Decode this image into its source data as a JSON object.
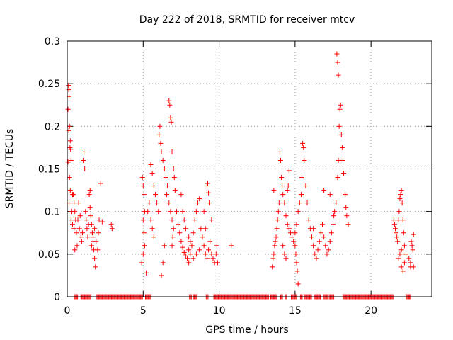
{
  "chart_data": {
    "type": "scatter",
    "title": "Day 222 of 2018, SRMTID for receiver mtcv",
    "xlabel": "GPS time / hours",
    "ylabel": "SRMTID / TECUs",
    "xlim": [
      0,
      24
    ],
    "ylim": [
      0,
      0.3
    ],
    "xticks": [
      0,
      5,
      10,
      15,
      20
    ],
    "yticks": [
      0,
      0.05,
      0.1,
      0.15,
      0.2,
      0.25,
      0.3
    ],
    "xtick_labels": [
      "0",
      "5",
      "10",
      "15",
      "20"
    ],
    "ytick_labels": [
      "0",
      "0.05",
      "0.1",
      "0.15",
      "0.2",
      "0.25",
      "0.3"
    ],
    "grid": true,
    "marker": "+",
    "color": "#ff0000",
    "series": [
      {
        "name": "SRMTID",
        "points": [
          [
            0.05,
            0.22
          ],
          [
            0.08,
            0.248
          ],
          [
            0.1,
            0.243
          ],
          [
            0.12,
            0.235
          ],
          [
            0.15,
            0.2
          ],
          [
            0.1,
            0.195
          ],
          [
            0.18,
            0.175
          ],
          [
            0.22,
            0.173
          ],
          [
            0.2,
            0.183
          ],
          [
            0.25,
            0.16
          ],
          [
            0.05,
            0.158
          ],
          [
            0.15,
            0.14
          ],
          [
            0.2,
            0.125
          ],
          [
            0.12,
            0.11
          ],
          [
            0.3,
            0.1
          ],
          [
            0.25,
            0.09
          ],
          [
            0.35,
            0.085
          ],
          [
            0.4,
            0.12
          ],
          [
            0.45,
            0.11
          ],
          [
            0.5,
            0.1
          ],
          [
            0.55,
            0.09
          ],
          [
            0.6,
            0.075
          ],
          [
            0.65,
            0.06
          ],
          [
            0.5,
            0.055
          ],
          [
            0.45,
            0.08
          ],
          [
            0.35,
            0.12
          ],
          [
            0.7,
            0.09
          ],
          [
            0.75,
            0.11
          ],
          [
            0.8,
            0.08
          ],
          [
            0.85,
            0.095
          ],
          [
            0.9,
            0.07
          ],
          [
            0.95,
            0.065
          ],
          [
            1.0,
            0.075
          ],
          [
            1.05,
            0.16
          ],
          [
            1.1,
            0.17
          ],
          [
            1.15,
            0.15
          ],
          [
            1.2,
            0.1
          ],
          [
            1.25,
            0.09
          ],
          [
            1.3,
            0.08
          ],
          [
            1.35,
            0.07
          ],
          [
            1.4,
            0.085
          ],
          [
            1.45,
            0.12
          ],
          [
            1.5,
            0.105
          ],
          [
            1.55,
            0.095
          ],
          [
            1.6,
            0.085
          ],
          [
            1.65,
            0.075
          ],
          [
            1.7,
            0.065
          ],
          [
            1.75,
            0.055
          ],
          [
            1.8,
            0.045
          ],
          [
            1.85,
            0.035
          ],
          [
            1.6,
            0.06
          ],
          [
            1.7,
            0.07
          ],
          [
            1.8,
            0.08
          ],
          [
            1.9,
            0.065
          ],
          [
            2.0,
            0.055
          ],
          [
            2.05,
            0.075
          ],
          [
            2.1,
            0.09
          ],
          [
            1.5,
            0.125
          ],
          [
            2.2,
            0.133
          ],
          [
            2.3,
            0.088
          ],
          [
            2.9,
            0.085
          ],
          [
            2.95,
            0.08
          ],
          [
            4.95,
            0.14
          ],
          [
            5.0,
            0.13
          ],
          [
            5.05,
            0.12
          ],
          [
            5.1,
            0.1
          ],
          [
            5.0,
            0.09
          ],
          [
            5.05,
            0.075
          ],
          [
            5.1,
            0.06
          ],
          [
            5.0,
            0.05
          ],
          [
            4.9,
            0.04
          ],
          [
            5.2,
            0.028
          ],
          [
            5.3,
            0.1
          ],
          [
            5.4,
            0.11
          ],
          [
            5.5,
            0.09
          ],
          [
            5.6,
            0.08
          ],
          [
            5.7,
            0.07
          ],
          [
            5.5,
            0.155
          ],
          [
            5.6,
            0.145
          ],
          [
            5.7,
            0.13
          ],
          [
            5.8,
            0.12
          ],
          [
            5.9,
            0.11
          ],
          [
            6.0,
            0.1
          ],
          [
            6.05,
            0.19
          ],
          [
            6.1,
            0.2
          ],
          [
            6.15,
            0.18
          ],
          [
            6.2,
            0.17
          ],
          [
            6.3,
            0.16
          ],
          [
            6.4,
            0.15
          ],
          [
            6.5,
            0.14
          ],
          [
            6.6,
            0.13
          ],
          [
            6.55,
            0.12
          ],
          [
            6.7,
            0.11
          ],
          [
            6.8,
            0.1
          ],
          [
            6.9,
            0.09
          ],
          [
            7.0,
            0.08
          ],
          [
            6.95,
            0.07
          ],
          [
            6.9,
            0.06
          ],
          [
            6.4,
            0.06
          ],
          [
            6.3,
            0.04
          ],
          [
            6.2,
            0.025
          ],
          [
            6.7,
            0.23
          ],
          [
            6.75,
            0.225
          ],
          [
            6.8,
            0.21
          ],
          [
            6.85,
            0.205
          ],
          [
            6.9,
            0.17
          ],
          [
            7.0,
            0.15
          ],
          [
            7.05,
            0.14
          ],
          [
            7.1,
            0.125
          ],
          [
            7.2,
            0.1
          ],
          [
            7.3,
            0.085
          ],
          [
            7.4,
            0.075
          ],
          [
            7.5,
            0.065
          ],
          [
            7.6,
            0.058
          ],
          [
            7.7,
            0.052
          ],
          [
            7.8,
            0.048
          ],
          [
            7.9,
            0.045
          ],
          [
            8.0,
            0.04
          ],
          [
            7.5,
            0.12
          ],
          [
            7.6,
            0.1
          ],
          [
            7.7,
            0.09
          ],
          [
            7.8,
            0.08
          ],
          [
            8.0,
            0.07
          ],
          [
            8.1,
            0.065
          ],
          [
            8.2,
            0.06
          ],
          [
            8.3,
            0.075
          ],
          [
            8.4,
            0.09
          ],
          [
            8.5,
            0.1
          ],
          [
            8.6,
            0.11
          ],
          [
            8.7,
            0.115
          ],
          [
            8.8,
            0.08
          ],
          [
            8.9,
            0.07
          ],
          [
            9.0,
            0.06
          ],
          [
            9.1,
            0.05
          ],
          [
            9.2,
            0.045
          ],
          [
            9.3,
            0.055
          ],
          [
            9.4,
            0.065
          ],
          [
            9.5,
            0.05
          ],
          [
            9.6,
            0.045
          ],
          [
            9.7,
            0.04
          ],
          [
            9.8,
            0.05
          ],
          [
            9.85,
            0.06
          ],
          [
            9.9,
            0.04
          ],
          [
            9.0,
            0.1
          ],
          [
            9.1,
            0.08
          ],
          [
            9.2,
            0.13
          ],
          [
            9.25,
            0.133
          ],
          [
            9.3,
            0.122
          ],
          [
            9.35,
            0.11
          ],
          [
            9.5,
            0.09
          ],
          [
            8.7,
            0.055
          ],
          [
            8.5,
            0.05
          ],
          [
            8.3,
            0.045
          ],
          [
            8.1,
            0.05
          ],
          [
            8.0,
            0.055
          ],
          [
            10.8,
            0.06
          ],
          [
            13.5,
            0.035
          ],
          [
            13.55,
            0.045
          ],
          [
            13.6,
            0.05
          ],
          [
            13.65,
            0.06
          ],
          [
            13.7,
            0.065
          ],
          [
            13.75,
            0.07
          ],
          [
            13.8,
            0.08
          ],
          [
            13.85,
            0.09
          ],
          [
            13.9,
            0.1
          ],
          [
            13.95,
            0.11
          ],
          [
            13.6,
            0.125
          ],
          [
            14.0,
            0.17
          ],
          [
            14.05,
            0.16
          ],
          [
            14.1,
            0.14
          ],
          [
            14.15,
            0.13
          ],
          [
            14.2,
            0.12
          ],
          [
            14.3,
            0.11
          ],
          [
            14.4,
            0.095
          ],
          [
            14.5,
            0.085
          ],
          [
            14.6,
            0.08
          ],
          [
            14.7,
            0.075
          ],
          [
            14.2,
            0.06
          ],
          [
            14.3,
            0.05
          ],
          [
            14.4,
            0.045
          ],
          [
            14.55,
            0.13
          ],
          [
            14.6,
            0.148
          ],
          [
            14.5,
            0.125
          ],
          [
            14.8,
            0.07
          ],
          [
            14.9,
            0.065
          ],
          [
            15.0,
            0.06
          ],
          [
            15.05,
            0.05
          ],
          [
            15.1,
            0.04
          ],
          [
            15.15,
            0.03
          ],
          [
            15.2,
            0.015
          ],
          [
            15.0,
            0.075
          ],
          [
            15.1,
            0.085
          ],
          [
            15.2,
            0.1
          ],
          [
            15.3,
            0.11
          ],
          [
            15.4,
            0.12
          ],
          [
            15.45,
            0.14
          ],
          [
            15.5,
            0.18
          ],
          [
            15.55,
            0.175
          ],
          [
            15.6,
            0.16
          ],
          [
            15.7,
            0.13
          ],
          [
            15.8,
            0.11
          ],
          [
            15.9,
            0.09
          ],
          [
            16.0,
            0.08
          ],
          [
            16.1,
            0.07
          ],
          [
            16.2,
            0.06
          ],
          [
            16.3,
            0.05
          ],
          [
            16.4,
            0.045
          ],
          [
            16.5,
            0.055
          ],
          [
            16.6,
            0.065
          ],
          [
            16.7,
            0.075
          ],
          [
            16.8,
            0.085
          ],
          [
            16.9,
            0.07
          ],
          [
            17.0,
            0.06
          ],
          [
            17.1,
            0.05
          ],
          [
            17.2,
            0.055
          ],
          [
            17.3,
            0.065
          ],
          [
            17.4,
            0.075
          ],
          [
            17.5,
            0.085
          ],
          [
            17.55,
            0.095
          ],
          [
            17.6,
            0.1
          ],
          [
            17.7,
            0.11
          ],
          [
            17.8,
            0.14
          ],
          [
            17.85,
            0.16
          ],
          [
            17.9,
            0.2
          ],
          [
            17.95,
            0.22
          ],
          [
            18.0,
            0.225
          ],
          [
            17.75,
            0.285
          ],
          [
            17.8,
            0.275
          ],
          [
            17.85,
            0.26
          ],
          [
            18.05,
            0.19
          ],
          [
            18.1,
            0.175
          ],
          [
            18.15,
            0.16
          ],
          [
            18.2,
            0.145
          ],
          [
            18.3,
            0.12
          ],
          [
            18.35,
            0.105
          ],
          [
            18.4,
            0.095
          ],
          [
            18.5,
            0.085
          ],
          [
            16.9,
            0.125
          ],
          [
            17.3,
            0.12
          ],
          [
            16.2,
            0.08
          ],
          [
            21.5,
            0.09
          ],
          [
            21.55,
            0.085
          ],
          [
            21.6,
            0.08
          ],
          [
            21.65,
            0.075
          ],
          [
            21.7,
            0.07
          ],
          [
            21.75,
            0.065
          ],
          [
            21.8,
            0.09
          ],
          [
            21.85,
            0.1
          ],
          [
            21.9,
            0.115
          ],
          [
            21.95,
            0.12
          ],
          [
            22.0,
            0.125
          ],
          [
            22.05,
            0.11
          ],
          [
            22.1,
            0.09
          ],
          [
            22.15,
            0.075
          ],
          [
            22.2,
            0.06
          ],
          [
            22.0,
            0.055
          ],
          [
            21.9,
            0.05
          ],
          [
            21.8,
            0.045
          ],
          [
            22.0,
            0.035
          ],
          [
            22.1,
            0.03
          ],
          [
            22.2,
            0.04
          ],
          [
            22.3,
            0.05
          ],
          [
            22.5,
            0.045
          ],
          [
            22.6,
            0.04
          ],
          [
            22.65,
            0.065
          ],
          [
            22.7,
            0.06
          ],
          [
            22.75,
            0.055
          ],
          [
            22.8,
            0.073
          ],
          [
            22.6,
            0.035
          ],
          [
            22.8,
            0.035
          ]
        ]
      }
    ],
    "zero_ranges": [
      [
        0.5,
        0.7
      ],
      [
        0.9,
        1.6
      ],
      [
        1.95,
        5.0
      ],
      [
        5.15,
        5.55
      ],
      [
        8.05,
        8.2
      ],
      [
        8.3,
        8.55
      ],
      [
        9.15,
        9.3
      ],
      [
        9.65,
        13.25
      ],
      [
        13.4,
        13.8
      ],
      [
        14.05,
        14.2
      ],
      [
        14.35,
        14.5
      ],
      [
        14.75,
        15.15
      ],
      [
        15.35,
        15.5
      ],
      [
        15.6,
        16.1
      ],
      [
        16.3,
        16.7
      ],
      [
        16.85,
        17.15
      ],
      [
        17.25,
        17.6
      ],
      [
        18.15,
        21.5
      ],
      [
        22.3,
        22.65
      ]
    ]
  }
}
